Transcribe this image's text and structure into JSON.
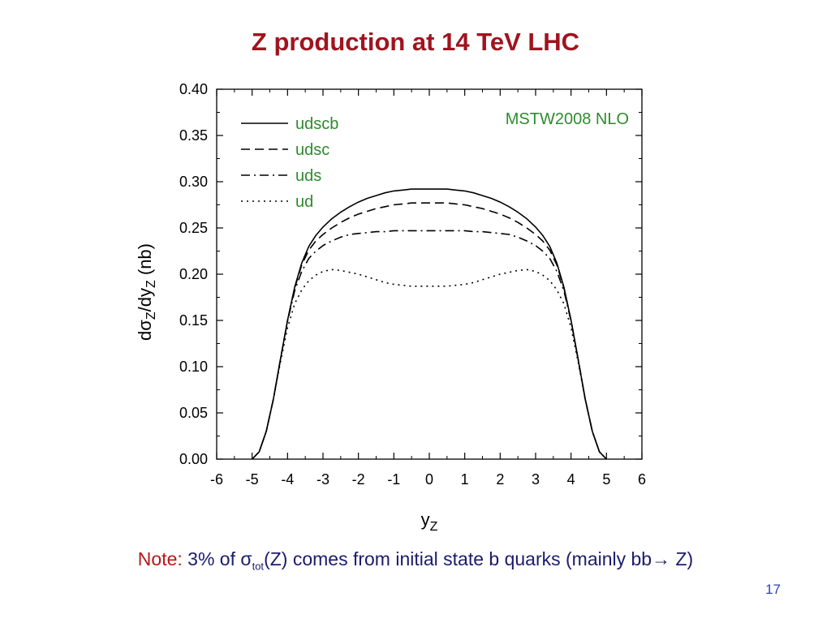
{
  "slide": {
    "title": "Z production at 14 TeV LHC",
    "note_label": "Note:",
    "note_pre": "3% of ",
    "note_sigma": "σ",
    "note_sub": "tot",
    "note_post": "(Z) comes from initial state b quarks (mainly bb→ Z)",
    "page_number": "17"
  },
  "chart_data": {
    "type": "line",
    "annotation": "MSTW2008 NLO",
    "xlabel": "y",
    "xlabel_sub": "Z",
    "ylabel": "dσ_Z/dy_Z (nb)",
    "xlim": [
      -6,
      6
    ],
    "ylim": [
      0.0,
      0.4
    ],
    "xticks": [
      "-6",
      "-5",
      "-4",
      "-3",
      "-2",
      "-1",
      "0",
      "1",
      "2",
      "3",
      "4",
      "5",
      "6"
    ],
    "yticks": [
      "0.00",
      "0.05",
      "0.10",
      "0.15",
      "0.20",
      "0.25",
      "0.30",
      "0.35",
      "0.40"
    ],
    "legend_position": "top-left",
    "grid": false,
    "colors": {
      "annotation": "#2e8b2e",
      "legend_text": "#2e8b2e",
      "lines": "#000000"
    },
    "x": [
      -5.0,
      -4.8,
      -4.6,
      -4.4,
      -4.2,
      -4.0,
      -3.8,
      -3.6,
      -3.4,
      -3.2,
      -3.0,
      -2.75,
      -2.5,
      -2.25,
      -2.0,
      -1.75,
      -1.5,
      -1.25,
      -1.0,
      -0.75,
      -0.5,
      -0.25,
      0.0,
      0.25,
      0.5,
      0.75,
      1.0,
      1.25,
      1.5,
      1.75,
      2.0,
      2.25,
      2.5,
      2.75,
      3.0,
      3.2,
      3.4,
      3.6,
      3.8,
      4.0,
      4.2,
      4.4,
      4.6,
      4.8,
      5.0
    ],
    "series": [
      {
        "name": "udscb",
        "dash": "solid",
        "values": [
          0.0,
          0.008,
          0.03,
          0.065,
          0.108,
          0.15,
          0.186,
          0.212,
          0.23,
          0.242,
          0.251,
          0.26,
          0.267,
          0.273,
          0.278,
          0.282,
          0.285,
          0.288,
          0.29,
          0.291,
          0.292,
          0.292,
          0.292,
          0.292,
          0.292,
          0.291,
          0.29,
          0.288,
          0.285,
          0.282,
          0.278,
          0.273,
          0.267,
          0.26,
          0.251,
          0.242,
          0.23,
          0.212,
          0.186,
          0.15,
          0.108,
          0.065,
          0.03,
          0.008,
          0.0
        ]
      },
      {
        "name": "udsc",
        "dash": "dashed",
        "values": [
          0.0,
          0.008,
          0.03,
          0.065,
          0.108,
          0.15,
          0.185,
          0.21,
          0.226,
          0.236,
          0.243,
          0.25,
          0.256,
          0.261,
          0.265,
          0.268,
          0.271,
          0.273,
          0.275,
          0.276,
          0.277,
          0.277,
          0.277,
          0.277,
          0.277,
          0.276,
          0.275,
          0.273,
          0.271,
          0.268,
          0.265,
          0.261,
          0.256,
          0.25,
          0.243,
          0.236,
          0.226,
          0.21,
          0.185,
          0.15,
          0.108,
          0.065,
          0.03,
          0.008,
          0.0
        ]
      },
      {
        "name": "uds",
        "dash": "dash-dot",
        "values": [
          0.0,
          0.008,
          0.03,
          0.065,
          0.108,
          0.149,
          0.182,
          0.203,
          0.217,
          0.225,
          0.231,
          0.236,
          0.24,
          0.243,
          0.244,
          0.245,
          0.246,
          0.246,
          0.247,
          0.247,
          0.247,
          0.247,
          0.247,
          0.247,
          0.247,
          0.247,
          0.247,
          0.246,
          0.246,
          0.245,
          0.244,
          0.243,
          0.24,
          0.236,
          0.231,
          0.225,
          0.217,
          0.203,
          0.182,
          0.149,
          0.108,
          0.065,
          0.03,
          0.008,
          0.0
        ]
      },
      {
        "name": "ud",
        "dash": "dotted",
        "values": [
          0.0,
          0.008,
          0.03,
          0.065,
          0.105,
          0.142,
          0.168,
          0.183,
          0.193,
          0.199,
          0.203,
          0.205,
          0.204,
          0.202,
          0.2,
          0.197,
          0.194,
          0.191,
          0.189,
          0.188,
          0.187,
          0.187,
          0.187,
          0.187,
          0.187,
          0.188,
          0.189,
          0.191,
          0.194,
          0.197,
          0.2,
          0.202,
          0.204,
          0.205,
          0.203,
          0.199,
          0.193,
          0.183,
          0.168,
          0.142,
          0.105,
          0.065,
          0.03,
          0.008,
          0.0
        ]
      }
    ]
  }
}
